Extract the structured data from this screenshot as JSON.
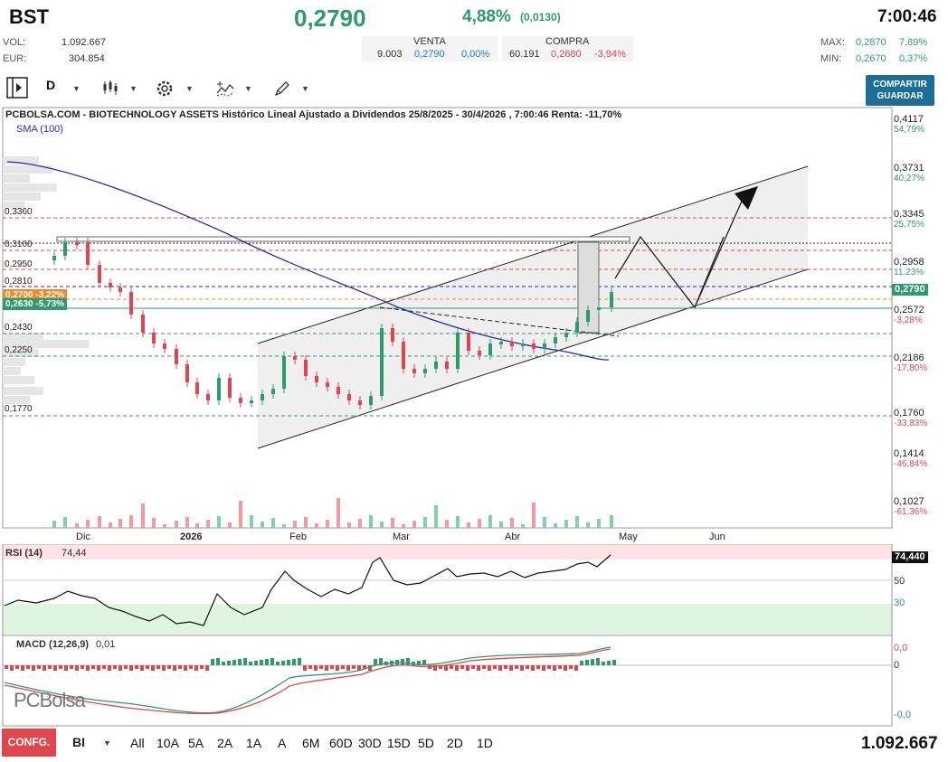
{
  "header": {
    "ticker": "BST",
    "price": "0,2790",
    "change_pct": "4,88%",
    "change_abs": "(0,0130)",
    "time": "7:00:46",
    "vol_label": "VOL:",
    "vol_value": "1.092.667",
    "eur_label": "EUR:",
    "eur_value": "304.854",
    "sell_label": "VENTA",
    "sell_qty": "9.003",
    "sell_price": "0,2790",
    "sell_pct": "0,00%",
    "buy_label": "COMPRA",
    "buy_qty": "60.191",
    "buy_price": "0,2680",
    "buy_pct": "-3,94%",
    "max_label": "MAX:",
    "max_value": "0,2870",
    "max_pct": "7,89%",
    "min_label": "MIN:",
    "min_value": "0,2670",
    "min_pct": "0,37%"
  },
  "toolbar": {
    "period": "D",
    "share_label_1": "COMPARTIR",
    "share_label_2": "GUARDAR",
    "icons": [
      "panel-toggle-icon",
      "candles-icon",
      "gear-icon",
      "indicators-icon",
      "draw-pencil-icon"
    ]
  },
  "chart": {
    "title": "PCBOLSA.COM - BIOTECHNOLOGY ASSETS Histórico Lineal Ajustado a Dividendos 25/8/2025 - 30/4/2026 , 7:00:46 Renta: -11,70%",
    "sma_label": "SMA (100)",
    "price_tag": "0,2790",
    "orange_tag": "0,2700 -3,22%",
    "teal_tag": "0,2630 -5,73%",
    "x_labels": [
      "Dic",
      "2026",
      "Feb",
      "Mar",
      "Abr",
      "May",
      "Jun"
    ],
    "left_levels": [
      "0,3360",
      "0,3100",
      "0,2950",
      "0,2810",
      "0,2430",
      "0,2250",
      "0,1770"
    ],
    "right_axis": [
      {
        "price": "0,4117",
        "pct": "54,79%"
      },
      {
        "price": "0,3731",
        "pct": "40,27%"
      },
      {
        "price": "0,3345",
        "pct": "25,75%"
      },
      {
        "price": "0,2958",
        "pct": "11,23%"
      },
      {
        "price": "0,2572",
        "pct": "-3,28%"
      },
      {
        "price": "0,2186",
        "pct": "-17,80%"
      },
      {
        "price": "0,1760",
        "pct": "-33,83%"
      },
      {
        "price": "0,1414",
        "pct": "-46,84%"
      },
      {
        "price": "0,1027",
        "pct": "-61,36%"
      }
    ],
    "colors": {
      "up": "#2e9b6e",
      "down": "#e0474c",
      "sma": "#2a2ab8"
    }
  },
  "rsi": {
    "label": "RSI (14)",
    "value": "74,44",
    "tag": "74,440",
    "levels": [
      "50",
      "30"
    ]
  },
  "macd": {
    "label": "MACD (12,26,9)",
    "value": "0,01",
    "axis": [
      "0,0",
      "0",
      "-0,0"
    ]
  },
  "logo": "PCBolsa",
  "footer": {
    "config_label": "CONFG.",
    "bi_label": "BI",
    "timeframes": [
      "All",
      "10A",
      "5A",
      "2A",
      "1A",
      "A",
      "6M",
      "60D",
      "30D",
      "15D",
      "5D",
      "2D",
      "1D"
    ],
    "volume": "1.092.667"
  }
}
